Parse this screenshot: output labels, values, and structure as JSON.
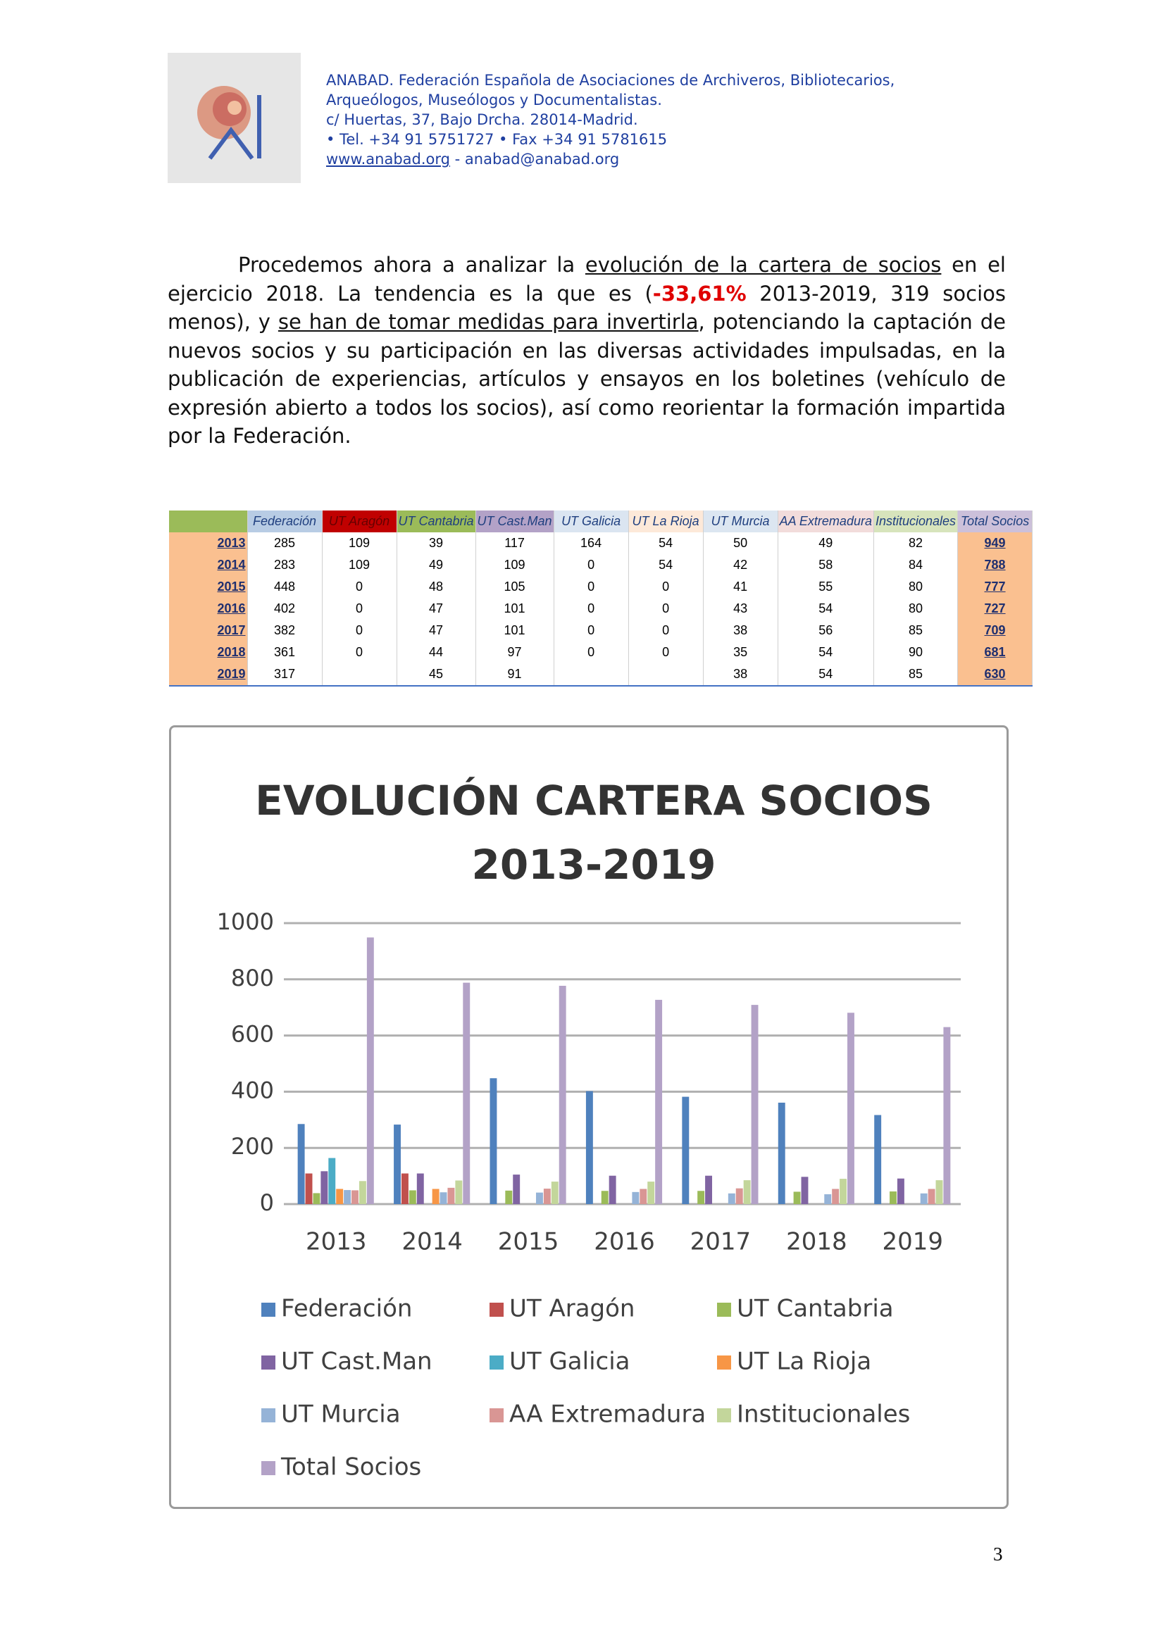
{
  "header": {
    "lines": [
      "ANABAD. Federación Española de Asociaciones de Archiveros, Bibliotecarios,",
      "Arqueólogos, Museólogos y Documentalistas.",
      "c/ Huertas, 37, Bajo Drcha. 28014-Madrid.",
      "• Tel. +34 91 5751727 • Fax +34 91 5781615"
    ],
    "web": "www.anabad.org",
    "email": " - anabad@anabad.org"
  },
  "body": {
    "paragraph": [
      "Procedemos ahora a analizar la ",
      "evolución de la cartera de socios",
      " en el ejercicio 2018. La tendencia es la que es (",
      "-33,61%",
      " 2013-2019, 319 socios menos), y ",
      "se han de tomar medidas para invertirla",
      ", potenciando la captación de nuevos socios y su participación en las diversas actividades impulsadas, en la publicación de experiencias, artículos y ensayos en los boletines (vehículo de expresión abierto a todos los socios), así como reorientar la formación impartida por la Federación."
    ]
  },
  "table": {
    "columns": [
      "Federación",
      "UT Aragón",
      "UT Cantabria",
      "UT Cast.Man",
      "UT Galicia",
      "UT La Rioja",
      "UT Murcia",
      "AA Extremadura",
      "Institucionales",
      "Total Socios"
    ],
    "rows": [
      [
        "2013",
        285,
        109,
        39,
        117,
        164,
        54,
        50,
        49,
        82,
        949
      ],
      [
        "2014",
        283,
        109,
        49,
        109,
        0,
        54,
        42,
        58,
        84,
        788
      ],
      [
        "2015",
        448,
        0,
        48,
        105,
        0,
        0,
        41,
        55,
        80,
        777
      ],
      [
        "2016",
        402,
        0,
        47,
        101,
        0,
        0,
        43,
        54,
        80,
        727
      ],
      [
        "2017",
        382,
        0,
        47,
        101,
        0,
        0,
        38,
        56,
        85,
        709
      ],
      [
        "2018",
        361,
        0,
        44,
        97,
        0,
        0,
        35,
        54,
        90,
        681
      ],
      [
        "2019",
        317,
        null,
        45,
        91,
        null,
        null,
        38,
        54,
        85,
        630
      ]
    ]
  },
  "chart_data": {
    "type": "bar",
    "title": [
      "EVOLUCIÓN CARTERA SOCIOS",
      "2013-2019"
    ],
    "categories": [
      "2013",
      "2014",
      "2015",
      "2016",
      "2017",
      "2018",
      "2019"
    ],
    "series": [
      {
        "name": "Federación",
        "color": "#4f81bd",
        "values": [
          285,
          283,
          448,
          402,
          382,
          361,
          317
        ]
      },
      {
        "name": "UT Aragón",
        "color": "#c0504d",
        "values": [
          109,
          109,
          0,
          0,
          0,
          0,
          null
        ]
      },
      {
        "name": "UT Cantabria",
        "color": "#9bbb59",
        "values": [
          39,
          49,
          48,
          47,
          47,
          44,
          45
        ]
      },
      {
        "name": "UT Cast.Man",
        "color": "#8064a2",
        "values": [
          117,
          109,
          105,
          101,
          101,
          97,
          91
        ]
      },
      {
        "name": "UT Galicia",
        "color": "#4bacc6",
        "values": [
          164,
          0,
          0,
          0,
          0,
          0,
          null
        ]
      },
      {
        "name": "UT La Rioja",
        "color": "#f79646",
        "values": [
          54,
          54,
          0,
          0,
          0,
          0,
          null
        ]
      },
      {
        "name": "UT Murcia",
        "color": "#95b3d7",
        "values": [
          50,
          42,
          41,
          43,
          38,
          35,
          38
        ]
      },
      {
        "name": "AA Extremadura",
        "color": "#d99694",
        "values": [
          49,
          58,
          55,
          54,
          56,
          54,
          54
        ]
      },
      {
        "name": "Institucionales",
        "color": "#c3d69b",
        "values": [
          82,
          84,
          80,
          80,
          85,
          90,
          85
        ]
      },
      {
        "name": "Total Socios",
        "color": "#b3a2c7",
        "values": [
          949,
          788,
          777,
          727,
          709,
          681,
          630
        ]
      }
    ],
    "ylim": [
      0,
      1000
    ],
    "yticks": [
      0,
      200,
      400,
      600,
      800,
      1000
    ],
    "grid": true,
    "legend": "bottom"
  },
  "footer": {
    "page": "3"
  }
}
